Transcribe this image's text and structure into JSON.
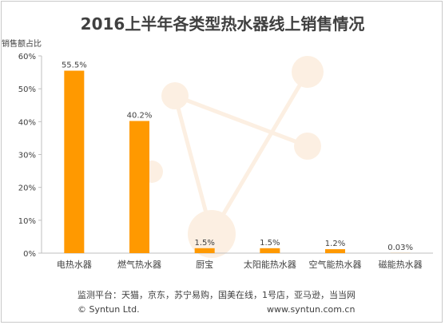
{
  "chart_data": {
    "type": "bar",
    "title": "2016上半年各类型热水器线上销售情况",
    "ylabel": "销售额占比",
    "xlabel": "",
    "categories": [
      "电热水器",
      "燃气热水器",
      "厨宝",
      "太阳能热水器",
      "空气能热水器",
      "磁能热水器"
    ],
    "values": [
      55.5,
      40.2,
      1.5,
      1.5,
      1.2,
      0.03
    ],
    "data_labels": [
      "55.5%",
      "40.2%",
      "1.5%",
      "1.5%",
      "1.2%",
      "0.03%"
    ],
    "yticks": [
      "0%",
      "10%",
      "20%",
      "30%",
      "40%",
      "50%",
      "60%"
    ],
    "ylim": [
      0,
      60
    ],
    "grid": false,
    "legend": "none",
    "bar_color": "#ff9900"
  },
  "footer": {
    "source": "监测平台：天猫，京东，苏宁易购，国美在线，1号店，亚马逊，当当网",
    "copyright": "© Syntun Ltd.",
    "website": "www.syntun.com.cn"
  }
}
